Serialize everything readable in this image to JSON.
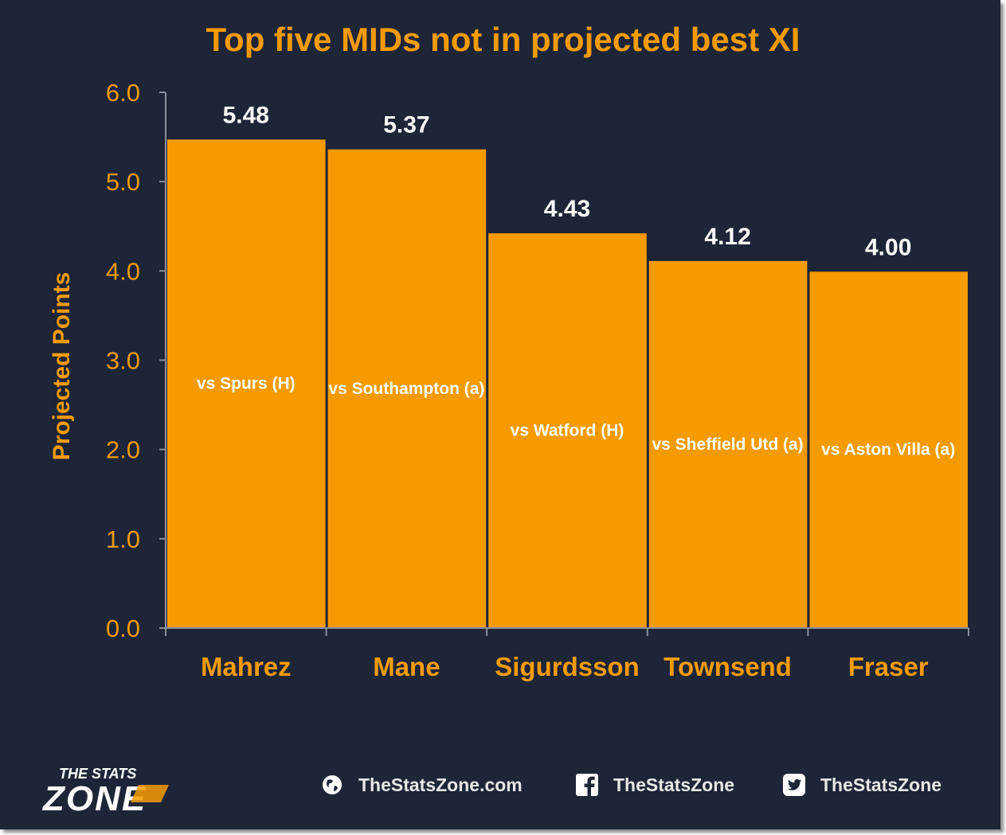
{
  "chart_data": {
    "type": "bar",
    "title": "Top five MIDs not in projected best XI",
    "xlabel": "",
    "ylabel": "Projected Points",
    "ylim": [
      0,
      6
    ],
    "yticks": [
      "0.0",
      "1.0",
      "2.0",
      "3.0",
      "4.0",
      "5.0",
      "6.0"
    ],
    "categories": [
      "Mahrez",
      "Mane",
      "Sigurdsson",
      "Townsend",
      "Fraser"
    ],
    "values": [
      5.48,
      5.37,
      4.43,
      4.12,
      4.0
    ],
    "value_labels": [
      "5.48",
      "5.37",
      "4.43",
      "4.12",
      "4.00"
    ],
    "fixture_labels": [
      "vs Spurs (H)",
      "vs Southampton (a)",
      "vs Watford (H)",
      "vs Sheffield Utd (a)",
      "vs Aston Villa (a)"
    ],
    "grid": false,
    "legend": "none",
    "colors": {
      "bar": "#f59b00",
      "bar_edge": "#1e2537",
      "background": "#1e2537",
      "accent": "#f59b00",
      "axis": "#8a8f99",
      "value_text": "#ffffff"
    }
  },
  "footer": {
    "logo": {
      "line1": "THE STATS",
      "line2": "ZONE"
    },
    "items": [
      {
        "icon": "globe-icon",
        "label": "TheStatsZone.com"
      },
      {
        "icon": "facebook-icon",
        "label": "TheStatsZone"
      },
      {
        "icon": "twitter-icon",
        "label": "TheStatsZone"
      }
    ]
  }
}
